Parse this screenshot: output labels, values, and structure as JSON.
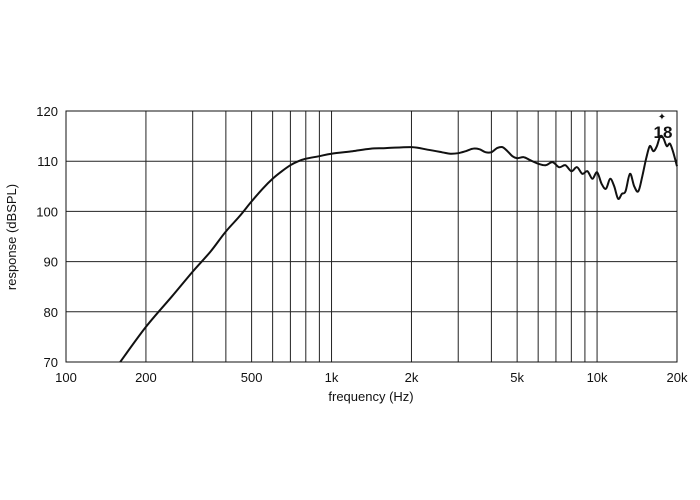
{
  "chart_data": {
    "type": "line",
    "xlabel": "frequency (Hz)",
    "ylabel": "response (dBSPL)",
    "x_scale": "log",
    "xlim": [
      100,
      20000
    ],
    "ylim": [
      70,
      120
    ],
    "grid": true,
    "x_ticks": [
      {
        "value": 100,
        "label": "100"
      },
      {
        "value": 200,
        "label": "200"
      },
      {
        "value": 500,
        "label": "500"
      },
      {
        "value": 1000,
        "label": "1k"
      },
      {
        "value": 2000,
        "label": "2k"
      },
      {
        "value": 5000,
        "label": "5k"
      },
      {
        "value": 10000,
        "label": "10k"
      },
      {
        "value": 20000,
        "label": "20k"
      }
    ],
    "y_ticks": [
      {
        "value": 70,
        "label": "70"
      },
      {
        "value": 80,
        "label": "80"
      },
      {
        "value": 90,
        "label": "90"
      },
      {
        "value": 100,
        "label": "100"
      },
      {
        "value": 110,
        "label": "110"
      },
      {
        "value": 120,
        "label": "120"
      }
    ],
    "logo_text": "18",
    "colors": {
      "line": "#111111",
      "grid": "#222222",
      "logo_accent": "#e03030"
    },
    "series": [
      {
        "x": [
          160,
          200,
          250,
          300,
          350,
          400,
          450,
          500,
          550,
          600,
          650,
          700,
          750,
          800,
          900,
          1000,
          1200,
          1400,
          1600,
          2000,
          2300,
          2600,
          2800,
          3000,
          3200,
          3400,
          3600,
          3800,
          4000,
          4200,
          4400,
          4600,
          4800,
          5000,
          5300,
          5600,
          6000,
          6400,
          6800,
          7200,
          7600,
          8000,
          8400,
          8800,
          9200,
          9600,
          10000,
          10400,
          10800,
          11200,
          11600,
          12000,
          12400,
          12800,
          13300,
          13800,
          14300,
          14800,
          15300,
          15800,
          16300,
          16800,
          17300,
          17800,
          18300,
          18800,
          19300,
          20000
        ],
        "y": [
          70,
          77,
          83,
          88,
          92,
          96,
          99,
          102,
          104.5,
          106.5,
          108,
          109.2,
          110,
          110.5,
          111,
          111.5,
          112,
          112.5,
          112.6,
          112.8,
          112.3,
          111.8,
          111.5,
          111.6,
          112,
          112.5,
          112.4,
          111.8,
          111.8,
          112.6,
          112.8,
          112,
          111,
          110.6,
          110.8,
          110.2,
          109.5,
          109.2,
          109.8,
          108.8,
          109.2,
          108,
          108.8,
          107.5,
          108,
          106.5,
          107.8,
          105.5,
          104.5,
          106.5,
          105,
          102.5,
          103.5,
          104,
          107.5,
          105,
          104,
          107,
          110.5,
          113,
          112,
          113,
          115,
          114.5,
          113,
          113.5,
          112,
          109
        ]
      }
    ]
  }
}
